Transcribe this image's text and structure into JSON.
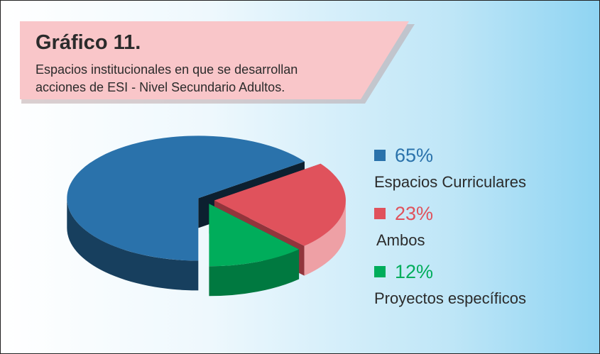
{
  "title": "Gráfico 11.",
  "subtitle": "Espacios institucionales en que se desarrollan acciones de ESI - Nivel Secundario Adultos.",
  "chart_data": {
    "type": "pie",
    "categories": [
      "Espacios Curriculares",
      "Ambos",
      "Proyectos específicos"
    ],
    "values": [
      65,
      23,
      12
    ],
    "value_labels": [
      "65%",
      "23%",
      "12%"
    ],
    "colors": [
      "#2a72ab",
      "#e0525c",
      "#00ad5b"
    ]
  }
}
